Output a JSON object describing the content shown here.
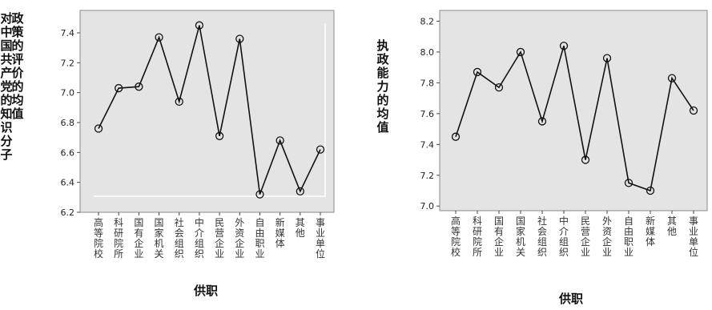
{
  "chart_data": [
    {
      "type": "line",
      "categories": [
        "高等院校",
        "科研院所",
        "国有企业",
        "国家机关",
        "社会组织",
        "中介组织",
        "民营企业",
        "外资企业",
        "自由职业",
        "新媒体",
        "其他",
        "事业单位"
      ],
      "values": [
        6.76,
        7.03,
        7.04,
        7.37,
        6.94,
        7.45,
        6.71,
        7.36,
        6.32,
        6.68,
        6.34,
        6.62
      ],
      "yticks": [
        "6.2",
        "6.4",
        "6.6",
        "6.8",
        "7.0",
        "7.2",
        "7.4"
      ],
      "ylim": [
        6.2,
        7.55
      ],
      "ylabel_col1": "政策的评价的均值",
      "ylabel_col2": "对中国共产党的知识分子",
      "xlabel": "供职"
    },
    {
      "type": "line",
      "categories": [
        "高等院校",
        "科研院所",
        "国有企业",
        "国家机关",
        "社会组织",
        "中介组织",
        "民营企业",
        "外资企业",
        "自由职业",
        "新媒体",
        "其他",
        "事业单位"
      ],
      "values": [
        7.45,
        7.87,
        7.77,
        8.0,
        7.55,
        8.04,
        7.3,
        7.96,
        7.15,
        7.1,
        7.83,
        7.62
      ],
      "yticks": [
        "7.0",
        "7.2",
        "7.4",
        "7.6",
        "7.8",
        "8.0",
        "8.2"
      ],
      "ylim": [
        6.97,
        8.27
      ],
      "ylabel": "执政能力的均值",
      "xlabel": "供职"
    }
  ]
}
